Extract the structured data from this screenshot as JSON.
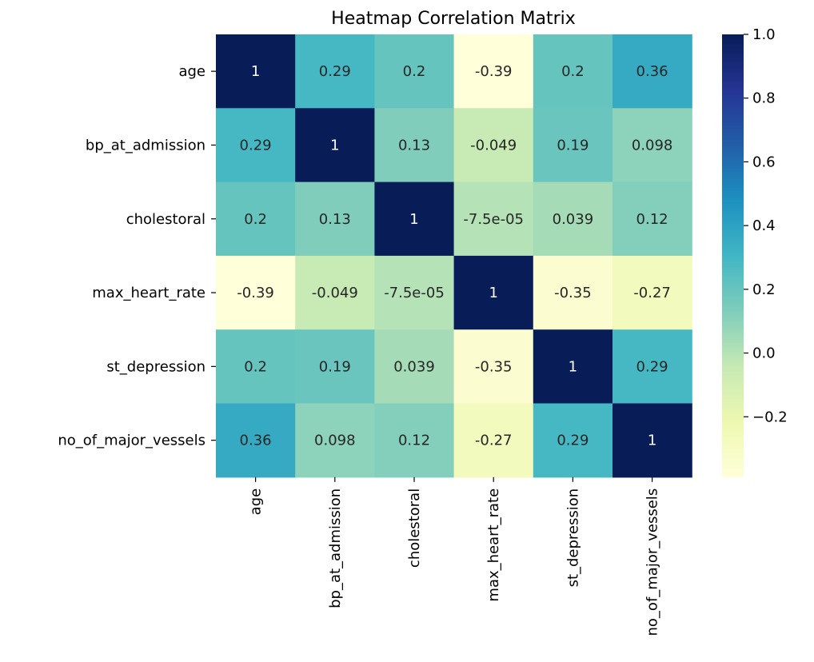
{
  "chart_data": {
    "type": "heatmap",
    "title": "Heatmap Correlation Matrix",
    "xlabel": "",
    "ylabel": "",
    "x_labels": [
      "age",
      "bp_at_admission",
      "cholestoral",
      "max_heart_rate",
      "st_depression",
      "no_of_major_vessels"
    ],
    "y_labels": [
      "age",
      "bp_at_admission",
      "cholestoral",
      "max_heart_rate",
      "st_depression",
      "no_of_major_vessels"
    ],
    "values": [
      [
        1,
        0.29,
        0.2,
        -0.39,
        0.2,
        0.36
      ],
      [
        0.29,
        1,
        0.13,
        -0.049,
        0.19,
        0.098
      ],
      [
        0.2,
        0.13,
        1,
        -7.5e-05,
        0.039,
        0.12
      ],
      [
        -0.39,
        -0.049,
        -7.5e-05,
        1,
        -0.35,
        -0.27
      ],
      [
        0.2,
        0.19,
        0.039,
        -0.35,
        1,
        0.29
      ],
      [
        0.36,
        0.098,
        0.12,
        -0.27,
        0.29,
        1
      ]
    ],
    "annotations": [
      [
        "1",
        "0.29",
        "0.2",
        "-0.39",
        "0.2",
        "0.36"
      ],
      [
        "0.29",
        "1",
        "0.13",
        "-0.049",
        "0.19",
        "0.098"
      ],
      [
        "0.2",
        "0.13",
        "1",
        "-7.5e-05",
        "0.039",
        "0.12"
      ],
      [
        "-0.39",
        "-0.049",
        "-7.5e-05",
        "1",
        "-0.35",
        "-0.27"
      ],
      [
        "0.2",
        "0.19",
        "0.039",
        "-0.35",
        "1",
        "0.29"
      ],
      [
        "0.36",
        "0.098",
        "0.12",
        "-0.27",
        "0.29",
        "1"
      ]
    ],
    "colormap": "YlGnBu",
    "colormap_stops": [
      "#ffffd9",
      "#edf8b1",
      "#c7e9b4",
      "#7fcdbb",
      "#41b6c4",
      "#1d91c0",
      "#225ea8",
      "#253494",
      "#081d58"
    ],
    "vmin": -0.39,
    "vmax": 1,
    "colorbar": {
      "ticks": [
        1.0,
        0.8,
        0.6,
        0.4,
        0.2,
        0.0,
        -0.2
      ],
      "tick_labels": [
        "1.0",
        "0.8",
        "0.6",
        "0.4",
        "0.2",
        "0.0",
        "−0.2"
      ]
    },
    "grid": false,
    "legend": "right colorbar"
  }
}
